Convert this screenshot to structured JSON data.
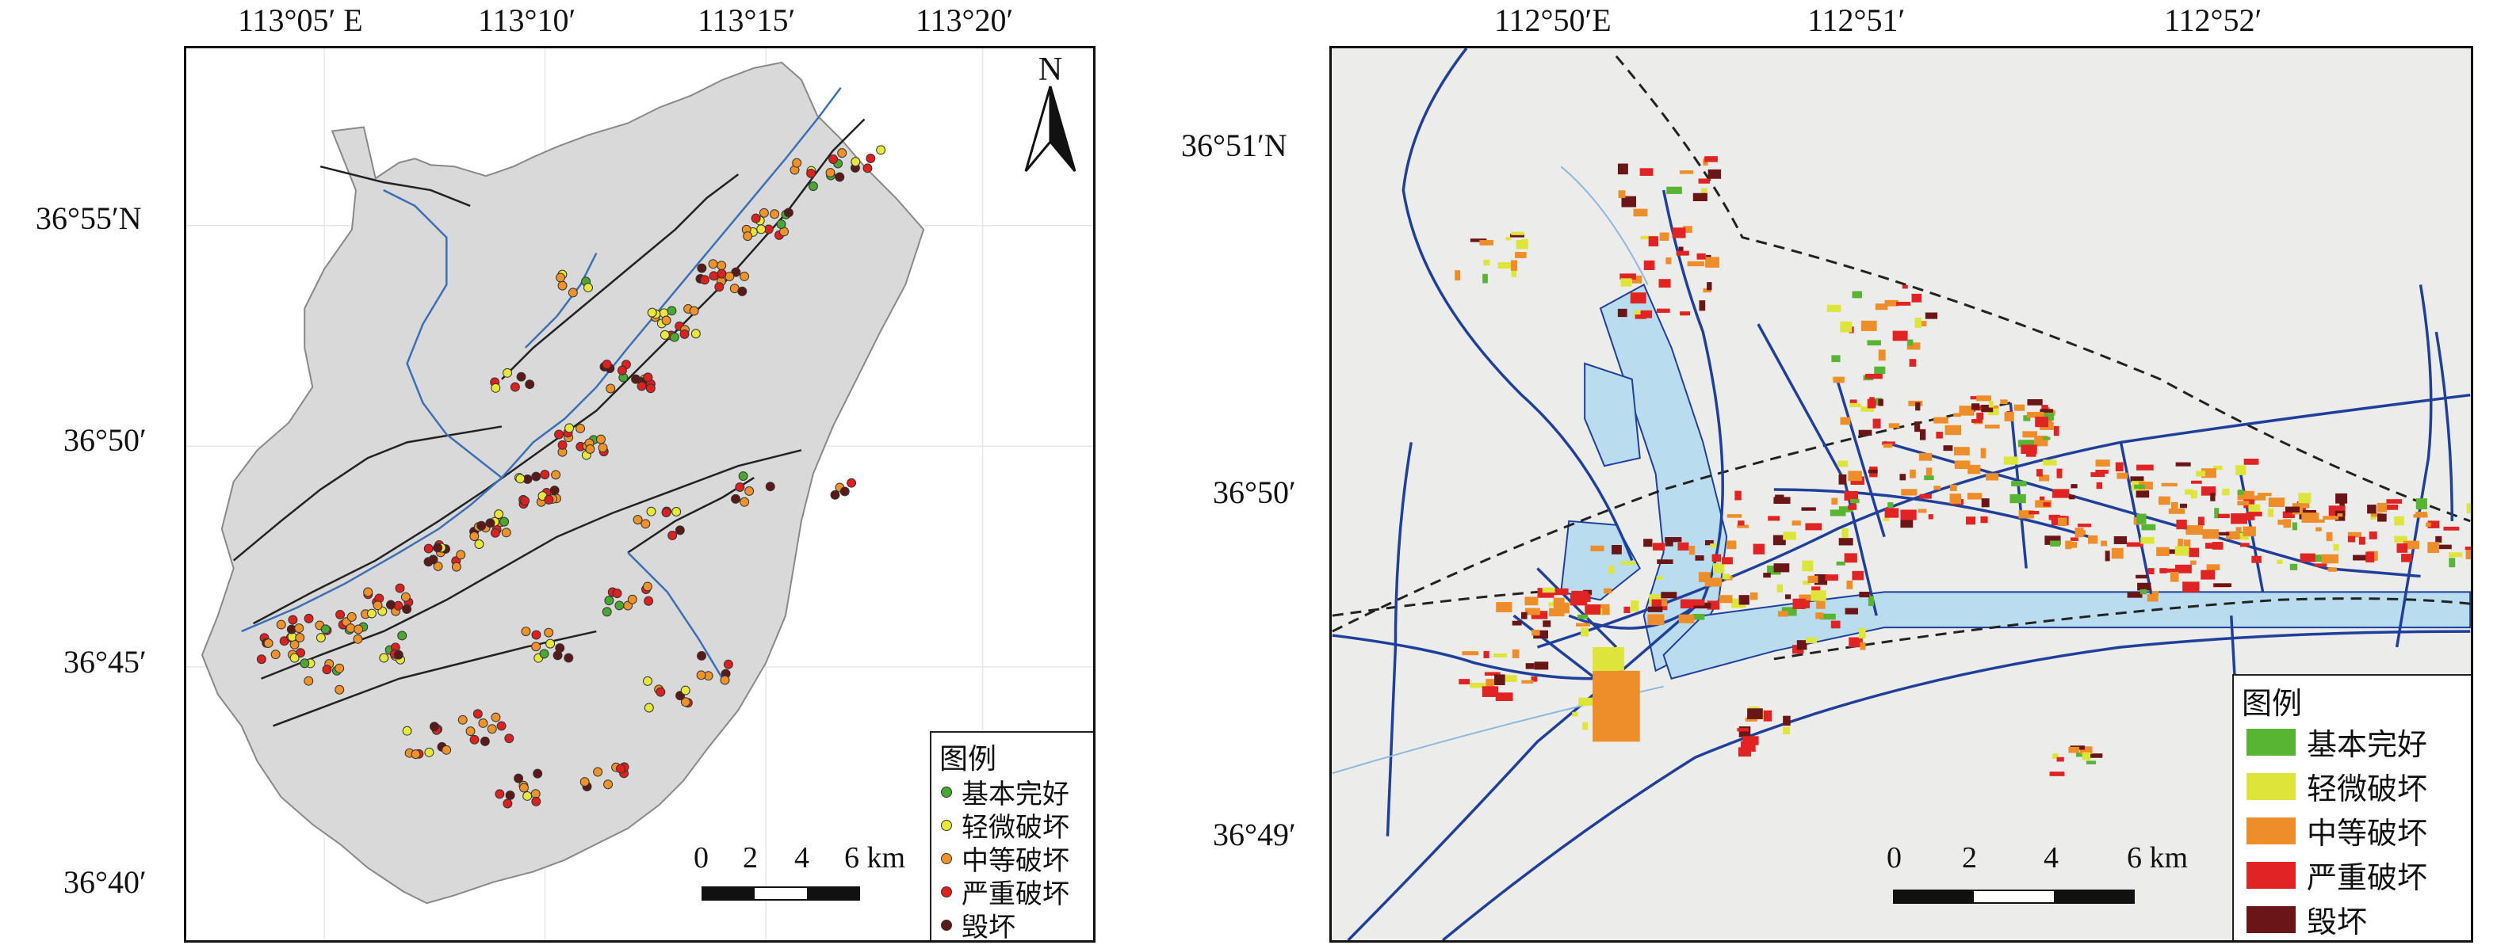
{
  "left_map": {
    "top_ticks": [
      "113°05′ E",
      "113°10′",
      "113°15′",
      "113°20′"
    ],
    "left_ticks": [
      "36°55′N",
      "36°50′",
      "36°45′",
      "36°40′"
    ],
    "north_label": "N",
    "legend": {
      "title": "图例",
      "items": [
        {
          "label": "基本完好",
          "color": "#4aa832"
        },
        {
          "label": "轻微破坏",
          "color": "#e8e83a"
        },
        {
          "label": "中等破坏",
          "color": "#f0922a"
        },
        {
          "label": "严重破坏",
          "color": "#dd2020"
        },
        {
          "label": "毁坏",
          "color": "#5a1a1a"
        }
      ]
    },
    "scale": {
      "labels": [
        "0",
        "2",
        "4",
        "6 km"
      ]
    },
    "colors": {
      "region_fill": "#d9d9d9",
      "river": "#3b6fb6",
      "fault": "#222222",
      "background": "#ffffff"
    }
  },
  "right_map": {
    "top_ticks": [
      "112°50′E",
      "112°51′",
      "112°52′"
    ],
    "left_ticks": [
      "36°51′N",
      "36°50′",
      "36°49′"
    ],
    "legend": {
      "title": "图例",
      "items": [
        {
          "label": "基本完好",
          "color": "#58b534"
        },
        {
          "label": "轻微破坏",
          "color": "#dde53a"
        },
        {
          "label": "中等破坏",
          "color": "#ee8e2a"
        },
        {
          "label": "严重破坏",
          "color": "#e02424"
        },
        {
          "label": "毁坏",
          "color": "#6a1616"
        }
      ]
    },
    "scale": {
      "labels": [
        "0",
        "2",
        "4",
        "6 km"
      ]
    },
    "colors": {
      "background": "#ececeb",
      "road": "#1f3f9a",
      "water": "#b9dcef",
      "railway": "#222222"
    }
  }
}
